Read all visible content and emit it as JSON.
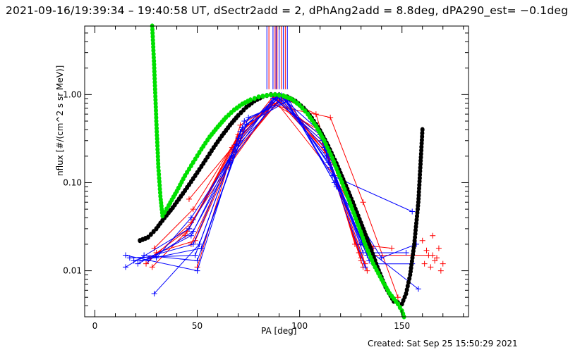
{
  "chart_data": {
    "type": "line",
    "title": "2021-09-16/19:39:34 – 19:40:58 UT, dSectr2add = 2, dPhAng2add = 8.8deg, dPA290_est= −0.1deg",
    "xlabel": "PA [deg]",
    "ylabel": "nflux [#/(cm^2 s sr MeV)]",
    "xlim": [
      -5,
      182.5
    ],
    "ylim": [
      0.003,
      6.0
    ],
    "yscale": "log",
    "grid": false,
    "x_ticks": [
      0,
      50,
      100,
      150
    ],
    "x_tick_labels": [
      "0",
      "50",
      "100",
      "150"
    ],
    "y_ticks": [
      0.01,
      0.1,
      1.0
    ],
    "y_tick_labels": [
      "0.01",
      "0.10",
      "1.00"
    ],
    "footer": "Created: Sat Sep 25 15:50:29 2021",
    "series": [
      {
        "name": "fit-black",
        "color": "#000000",
        "style": "thick-dots",
        "x": [
          22,
          26,
          30,
          34,
          38,
          42,
          46,
          50,
          54,
          58,
          62,
          66,
          70,
          74,
          78,
          82,
          86,
          90,
          94,
          98,
          102,
          106,
          110,
          114,
          118,
          122,
          126,
          130,
          134,
          138,
          142,
          146,
          150,
          152,
          154,
          156,
          158,
          160
        ],
        "y": [
          0.022,
          0.024,
          0.03,
          0.04,
          0.052,
          0.07,
          0.095,
          0.13,
          0.18,
          0.25,
          0.34,
          0.45,
          0.58,
          0.72,
          0.85,
          0.95,
          1.0,
          0.99,
          0.94,
          0.84,
          0.7,
          0.54,
          0.39,
          0.26,
          0.165,
          0.1,
          0.06,
          0.035,
          0.02,
          0.011,
          0.0065,
          0.0045,
          0.0042,
          0.0055,
          0.009,
          0.02,
          0.06,
          0.4
        ]
      },
      {
        "name": "fit-green",
        "color": "#00e000",
        "style": "thick-dots",
        "x": [
          28,
          29,
          30,
          31,
          32,
          33,
          36,
          40,
          44,
          48,
          52,
          56,
          60,
          64,
          68,
          72,
          76,
          80,
          84,
          88,
          92,
          96,
          100,
          104,
          108,
          112,
          116,
          120,
          124,
          128,
          132,
          136,
          140,
          144,
          148,
          150,
          151
        ],
        "y": [
          6.0,
          2.0,
          0.5,
          0.15,
          0.07,
          0.042,
          0.055,
          0.08,
          0.12,
          0.17,
          0.24,
          0.33,
          0.43,
          0.55,
          0.67,
          0.78,
          0.87,
          0.94,
          0.98,
          1.0,
          0.97,
          0.89,
          0.76,
          0.6,
          0.44,
          0.3,
          0.19,
          0.11,
          0.064,
          0.036,
          0.02,
          0.012,
          0.008,
          0.0055,
          0.0042,
          0.0035,
          0.003
        ]
      },
      {
        "name": "data-red",
        "color": "#ff0000",
        "style": "lines-plus",
        "traces": [
          {
            "x": [
              25,
              47,
              71,
              88,
              113,
              131
            ],
            "y": [
              0.012,
              0.035,
              0.3,
              0.92,
              0.22,
              0.011
            ]
          },
          {
            "x": [
              27,
              46,
              70,
              89,
              112,
              130
            ],
            "y": [
              0.014,
              0.03,
              0.35,
              0.88,
              0.26,
              0.013
            ]
          },
          {
            "x": [
              28,
              45,
              69,
              87,
              111,
              132
            ],
            "y": [
              0.011,
              0.028,
              0.28,
              0.95,
              0.3,
              0.012
            ]
          },
          {
            "x": [
              29,
              48,
              72,
              90,
              110,
              130
            ],
            "y": [
              0.018,
              0.05,
              0.4,
              0.85,
              0.35,
              0.014
            ]
          },
          {
            "x": [
              30,
              49,
              68,
              91,
              114,
              133
            ],
            "y": [
              0.016,
              0.022,
              0.22,
              0.9,
              0.2,
              0.01
            ]
          },
          {
            "x": [
              46,
              67,
              86,
              109,
              129
            ],
            "y": [
              0.065,
              0.25,
              0.82,
              0.4,
              0.016
            ]
          },
          {
            "x": [
              47,
              66,
              88,
              115,
              131,
              148
            ],
            "y": [
              0.02,
              0.18,
              0.75,
              0.55,
              0.06,
              0.005
            ]
          },
          {
            "x": [
              48,
              65,
              90,
              108,
              127,
              145
            ],
            "y": [
              0.038,
              0.15,
              0.97,
              0.6,
              0.02,
              0.018
            ]
          },
          {
            "x": [
              44,
              70,
              92,
              116,
              134,
              165
            ],
            "y": [
              0.025,
              0.33,
              0.96,
              0.17,
              0.015,
              0.015
            ]
          },
          {
            "x": [
              50,
              71,
              89,
              117,
              136
            ],
            "y": [
              0.011,
              0.45,
              0.8,
              0.12,
              0.018
            ]
          }
        ],
        "extra_points": {
          "x": [
            160,
            161,
            162,
            163,
            164,
            165,
            166,
            167,
            168,
            169,
            170
          ],
          "y": [
            0.022,
            0.012,
            0.017,
            0.015,
            0.011,
            0.025,
            0.013,
            0.014,
            0.018,
            0.01,
            0.012
          ]
        }
      },
      {
        "name": "data-blue",
        "color": "#0000ff",
        "style": "lines-plus",
        "traces": [
          {
            "x": [
              15,
              50,
              72,
              90,
              112,
              131
            ],
            "y": [
              0.015,
              0.01,
              0.42,
              0.93,
              0.25,
              0.02
            ]
          },
          {
            "x": [
              17,
              49,
              71,
              89,
              113,
              133
            ],
            "y": [
              0.014,
              0.015,
              0.38,
              0.96,
              0.2,
              0.015
            ]
          },
          {
            "x": [
              19,
              48,
              70,
              91,
              114,
              134
            ],
            "y": [
              0.013,
              0.02,
              0.32,
              0.98,
              0.17,
              0.013
            ]
          },
          {
            "x": [
              21,
              47,
              69,
              88,
              111,
              135
            ],
            "y": [
              0.012,
              0.025,
              0.27,
              0.9,
              0.3,
              0.018
            ]
          },
          {
            "x": [
              15,
              46,
              68,
              92,
              115,
              132
            ],
            "y": [
              0.011,
              0.03,
              0.24,
              0.95,
              0.15,
              0.011
            ]
          },
          {
            "x": [
              29,
              51,
              73,
              93,
              116,
              155
            ],
            "y": [
              0.0055,
              0.02,
              0.5,
              0.88,
              0.12,
              0.047
            ]
          },
          {
            "x": [
              24,
              50,
              74,
              94,
              117,
              140,
              157
            ],
            "y": [
              0.015,
              0.013,
              0.46,
              0.84,
              0.1,
              0.014,
              0.02
            ]
          },
          {
            "x": [
              22,
              52,
              75,
              95,
              118,
              136,
              155
            ],
            "y": [
              0.013,
              0.018,
              0.55,
              0.86,
              0.09,
              0.012,
              0.012
            ]
          },
          {
            "x": [
              30,
              47,
              67,
              87,
              110,
              131,
              152
            ],
            "y": [
              0.014,
              0.04,
              0.2,
              0.91,
              0.35,
              0.016,
              0.016
            ]
          },
          {
            "x": [
              26,
              48,
              66,
              90,
              109,
              130,
              158
            ],
            "y": [
              0.013,
              0.028,
              0.17,
              0.99,
              0.4,
              0.02,
              0.0062
            ]
          }
        ]
      },
      {
        "name": "spikes",
        "style": "vertical-lines",
        "colors": [
          "#0000ff",
          "#ff0000"
        ],
        "x": [
          84,
          85,
          87,
          88,
          88.5,
          89,
          90,
          91,
          92,
          93,
          94
        ],
        "y_from": 1.15,
        "y_to": 6.0
      }
    ]
  }
}
